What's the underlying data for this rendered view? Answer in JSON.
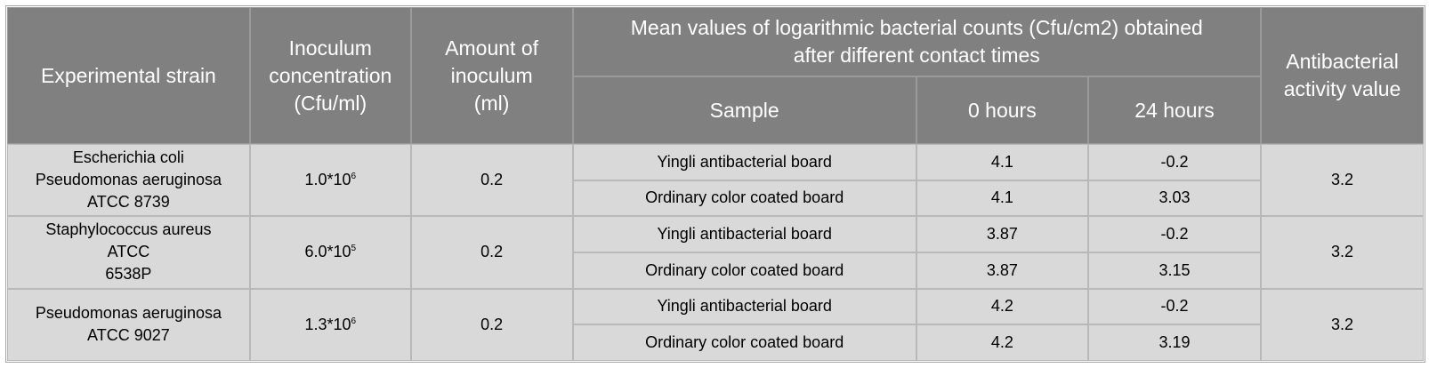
{
  "header": {
    "experimental_strain": "Experimental strain",
    "inoculum_concentration": [
      "Inoculum",
      "concentration",
      "(Cfu/ml)"
    ],
    "amount_of_inoculum": [
      "Amount of",
      "inoculum",
      "(ml)"
    ],
    "mean_values": [
      "Mean values of logarithmic bacterial counts (Cfu/cm2) obtained",
      "after different contact times"
    ],
    "sample": "Sample",
    "hours_0": "0 hours",
    "hours_24": "24 hours",
    "antibacterial_activity": [
      "Antibacterial",
      "activity value"
    ]
  },
  "rows": [
    {
      "strain": [
        "Escherichia coli",
        "Pseudomonas aeruginosa",
        "ATCC 8739"
      ],
      "concentration_base": "1.0*10",
      "concentration_exp": "6",
      "amount": "0.2",
      "samples": [
        {
          "name": "Yingli antibacterial board",
          "h0": "4.1",
          "h24": "-0.2"
        },
        {
          "name": "Ordinary color coated board",
          "h0": "4.1",
          "h24": "3.03"
        }
      ],
      "activity": "3.2"
    },
    {
      "strain": [
        "Staphylococcus aureus",
        "ATCC",
        "6538P"
      ],
      "concentration_base": "6.0*10",
      "concentration_exp": "5",
      "amount": "0.2",
      "samples": [
        {
          "name": "Yingli antibacterial board",
          "h0": "3.87",
          "h24": "-0.2"
        },
        {
          "name": "Ordinary color coated board",
          "h0": "3.87",
          "h24": "3.15"
        }
      ],
      "activity": "3.2"
    },
    {
      "strain": [
        "Pseudomonas aeruginosa",
        "ATCC 9027"
      ],
      "concentration_base": "1.3*10",
      "concentration_exp": "6",
      "amount": "0.2",
      "samples": [
        {
          "name": "Yingli antibacterial board",
          "h0": "4.2",
          "h24": "-0.2"
        },
        {
          "name": "Ordinary color coated board",
          "h0": "4.2",
          "h24": "3.19"
        }
      ],
      "activity": "3.2"
    }
  ]
}
